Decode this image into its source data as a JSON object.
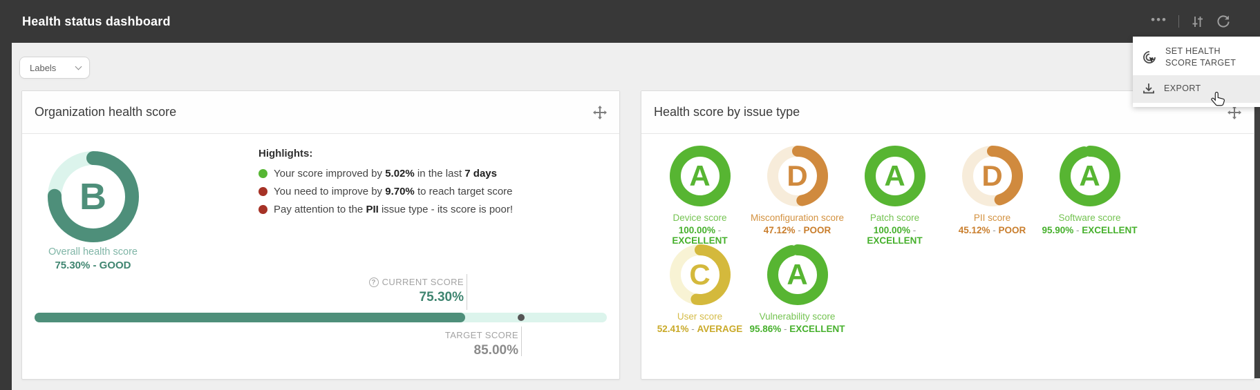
{
  "header": {
    "title": "Health status dashboard"
  },
  "toolbar": {
    "labels_label": "Labels"
  },
  "menu": {
    "items": [
      {
        "label": "SET HEALTH SCORE TARGET",
        "icon": "click-target-icon",
        "hovered": false
      },
      {
        "label": "EXPORT",
        "icon": "download-icon",
        "hovered": true
      }
    ]
  },
  "org_card": {
    "title": "Organization health score",
    "donut": {
      "grade": "B",
      "percent": 75.3,
      "caption": "Overall health score",
      "value_text": "75.30% - GOOD"
    },
    "highlights": {
      "title": "Highlights:",
      "items": [
        {
          "dot_color": "#56b633",
          "segments": [
            {
              "t": "Your score improved by ",
              "b": false
            },
            {
              "t": "5.02%",
              "b": true
            },
            {
              "t": " in the last ",
              "b": false
            },
            {
              "t": "7 days",
              "b": true
            }
          ]
        },
        {
          "dot_color": "#a63226",
          "segments": [
            {
              "t": "You need to improve by ",
              "b": false
            },
            {
              "t": "9.70%",
              "b": true
            },
            {
              "t": " to reach target score",
              "b": false
            }
          ]
        },
        {
          "dot_color": "#a63226",
          "segments": [
            {
              "t": "Pay attention to the ",
              "b": false
            },
            {
              "t": "PII",
              "b": true
            },
            {
              "t": " issue type - its score is poor!",
              "b": false
            }
          ]
        }
      ]
    },
    "score_bar": {
      "current_label": "CURRENT SCORE",
      "current_value": "75.30%",
      "current_percent": 75.3,
      "target_label": "TARGET SCORE",
      "target_value": "85.00%",
      "target_percent": 85
    }
  },
  "issue_card": {
    "title": "Health score by issue type",
    "items": [
      {
        "grade": "A",
        "name": "Device score",
        "value": "100.00%",
        "rating": "EXCELLENT",
        "percent": 100,
        "palette": "green"
      },
      {
        "grade": "D",
        "name": "Misconfiguration score",
        "value": "47.12%",
        "rating": "POOR",
        "percent": 47.12,
        "palette": "orange"
      },
      {
        "grade": "A",
        "name": "Patch score",
        "value": "100.00%",
        "rating": "EXCELLENT",
        "percent": 100,
        "palette": "green"
      },
      {
        "grade": "D",
        "name": "PII score",
        "value": "45.12%",
        "rating": "POOR",
        "percent": 45.12,
        "palette": "orange"
      },
      {
        "grade": "A",
        "name": "Software score",
        "value": "95.90%",
        "rating": "EXCELLENT",
        "percent": 95.9,
        "palette": "green"
      },
      {
        "grade": "C",
        "name": "User score",
        "value": "52.41%",
        "rating": "AVERAGE",
        "percent": 52.41,
        "palette": "yellow"
      },
      {
        "grade": "A",
        "name": "Vulnerability score",
        "value": "95.86%",
        "rating": "EXCELLENT",
        "percent": 95.86,
        "palette": "green"
      }
    ]
  },
  "palettes": {
    "teal": {
      "arc": "#4e8f7a",
      "track": "#dcf4ec",
      "name": "#7fb5a6",
      "value": "#3f8570"
    },
    "green": {
      "arc": "#57b532",
      "track": "#e3f4da",
      "name": "#74c351",
      "value": "#46b02c"
    },
    "orange": {
      "arc": "#d08a3e",
      "track": "#f7ecda",
      "name": "#d3913f",
      "value": "#c97e2d"
    },
    "yellow": {
      "arc": "#d4b93c",
      "track": "#f8f3d4",
      "name": "#d6bc49",
      "value": "#c9a928"
    }
  },
  "icons": {
    "more": "more-options-icon",
    "tune": "filter-settings-icon",
    "refresh": "refresh-icon",
    "drag": "move-drag-icon",
    "question": "help-circle-icon",
    "cursor": "hand-pointer-cursor"
  }
}
